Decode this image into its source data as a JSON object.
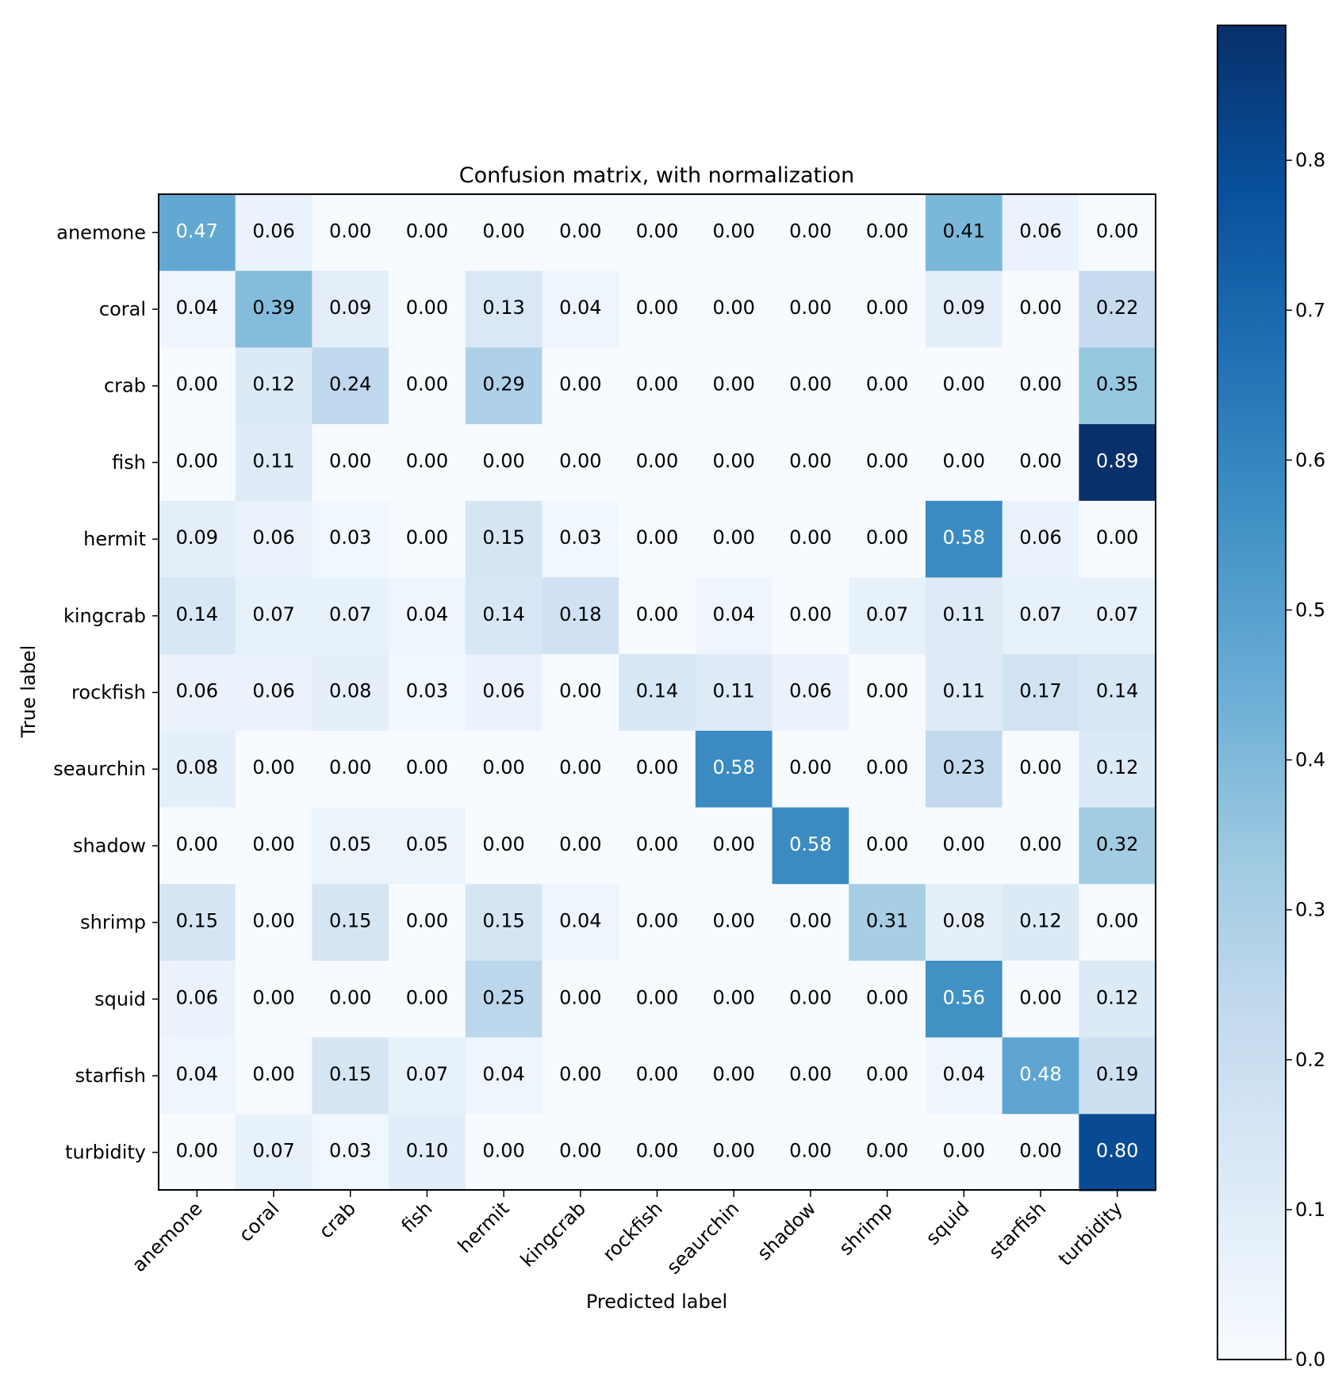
{
  "chart_data": {
    "type": "heatmap",
    "title": "Confusion matrix, with normalization",
    "xlabel": "Predicted label",
    "ylabel": "True label",
    "colormap": "Blues",
    "x_categories": [
      "anemone",
      "coral",
      "crab",
      "fish",
      "hermit",
      "kingcrab",
      "rockfish",
      "seaurchin",
      "shadow",
      "shrimp",
      "squid",
      "starfish",
      "turbidity"
    ],
    "y_categories": [
      "anemone",
      "coral",
      "crab",
      "fish",
      "hermit",
      "kingcrab",
      "rockfish",
      "seaurchin",
      "shadow",
      "shrimp",
      "squid",
      "starfish",
      "turbidity"
    ],
    "matrix": [
      [
        0.47,
        0.06,
        0.0,
        0.0,
        0.0,
        0.0,
        0.0,
        0.0,
        0.0,
        0.0,
        0.41,
        0.06,
        0.0
      ],
      [
        0.04,
        0.39,
        0.09,
        0.0,
        0.13,
        0.04,
        0.0,
        0.0,
        0.0,
        0.0,
        0.09,
        0.0,
        0.22
      ],
      [
        0.0,
        0.12,
        0.24,
        0.0,
        0.29,
        0.0,
        0.0,
        0.0,
        0.0,
        0.0,
        0.0,
        0.0,
        0.35
      ],
      [
        0.0,
        0.11,
        0.0,
        0.0,
        0.0,
        0.0,
        0.0,
        0.0,
        0.0,
        0.0,
        0.0,
        0.0,
        0.89
      ],
      [
        0.09,
        0.06,
        0.03,
        0.0,
        0.15,
        0.03,
        0.0,
        0.0,
        0.0,
        0.0,
        0.58,
        0.06,
        0.0
      ],
      [
        0.14,
        0.07,
        0.07,
        0.04,
        0.14,
        0.18,
        0.0,
        0.04,
        0.0,
        0.07,
        0.11,
        0.07,
        0.07
      ],
      [
        0.06,
        0.06,
        0.08,
        0.03,
        0.06,
        0.0,
        0.14,
        0.11,
        0.06,
        0.0,
        0.11,
        0.17,
        0.14
      ],
      [
        0.08,
        0.0,
        0.0,
        0.0,
        0.0,
        0.0,
        0.0,
        0.58,
        0.0,
        0.0,
        0.23,
        0.0,
        0.12
      ],
      [
        0.0,
        0.0,
        0.05,
        0.05,
        0.0,
        0.0,
        0.0,
        0.0,
        0.58,
        0.0,
        0.0,
        0.0,
        0.32
      ],
      [
        0.15,
        0.0,
        0.15,
        0.0,
        0.15,
        0.04,
        0.0,
        0.0,
        0.0,
        0.31,
        0.08,
        0.12,
        0.0
      ],
      [
        0.06,
        0.0,
        0.0,
        0.0,
        0.25,
        0.0,
        0.0,
        0.0,
        0.0,
        0.0,
        0.56,
        0.0,
        0.12
      ],
      [
        0.04,
        0.0,
        0.15,
        0.07,
        0.04,
        0.0,
        0.0,
        0.0,
        0.0,
        0.0,
        0.04,
        0.48,
        0.19
      ],
      [
        0.0,
        0.07,
        0.03,
        0.1,
        0.0,
        0.0,
        0.0,
        0.0,
        0.0,
        0.0,
        0.0,
        0.0,
        0.8
      ]
    ],
    "vmin": 0.0,
    "vmax": 0.89,
    "text_color_threshold": 0.445,
    "colorbar_ticks": [
      "0.0",
      "0.1",
      "0.2",
      "0.3",
      "0.4",
      "0.5",
      "0.6",
      "0.7",
      "0.8"
    ],
    "colorbar_values": [
      0.0,
      0.1,
      0.2,
      0.3,
      0.4,
      0.5,
      0.6,
      0.7,
      0.8
    ],
    "grid": false
  }
}
